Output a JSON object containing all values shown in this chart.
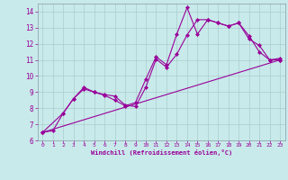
{
  "xlabel": "Windchill (Refroidissement éolien,°C)",
  "bg_color": "#c8eaea",
  "line_color": "#990099",
  "grid_color": "#aacccc",
  "xlim": [
    -0.5,
    23.5
  ],
  "ylim": [
    6,
    14.5
  ],
  "xticks": [
    0,
    1,
    2,
    3,
    4,
    5,
    6,
    7,
    8,
    9,
    10,
    11,
    12,
    13,
    14,
    15,
    16,
    17,
    18,
    19,
    20,
    21,
    22,
    23
  ],
  "yticks": [
    6,
    7,
    8,
    9,
    10,
    11,
    12,
    13,
    14
  ],
  "line1_x": [
    0,
    1,
    2,
    3,
    4,
    5,
    6,
    7,
    8,
    9,
    10,
    11,
    12,
    13,
    14,
    15,
    16,
    17,
    18,
    19,
    20,
    21,
    22,
    23
  ],
  "line1_y": [
    6.5,
    6.6,
    7.7,
    8.6,
    9.2,
    9.0,
    8.8,
    8.5,
    8.15,
    8.35,
    9.8,
    11.2,
    10.7,
    12.6,
    14.25,
    12.6,
    13.5,
    13.3,
    13.1,
    13.3,
    12.3,
    11.9,
    11.0,
    11.0
  ],
  "line2_x": [
    0,
    2,
    3,
    4,
    5,
    6,
    7,
    8,
    9,
    10,
    11,
    12,
    13,
    14,
    15,
    16,
    17,
    18,
    19,
    20,
    21,
    22,
    23
  ],
  "line2_y": [
    6.5,
    7.7,
    8.6,
    9.3,
    9.0,
    8.85,
    8.75,
    8.2,
    8.1,
    9.3,
    11.05,
    10.55,
    11.35,
    12.55,
    13.5,
    13.5,
    13.3,
    13.1,
    13.3,
    12.5,
    11.5,
    11.0,
    11.1
  ],
  "line3_x": [
    0,
    23
  ],
  "line3_y": [
    6.5,
    11.0
  ]
}
